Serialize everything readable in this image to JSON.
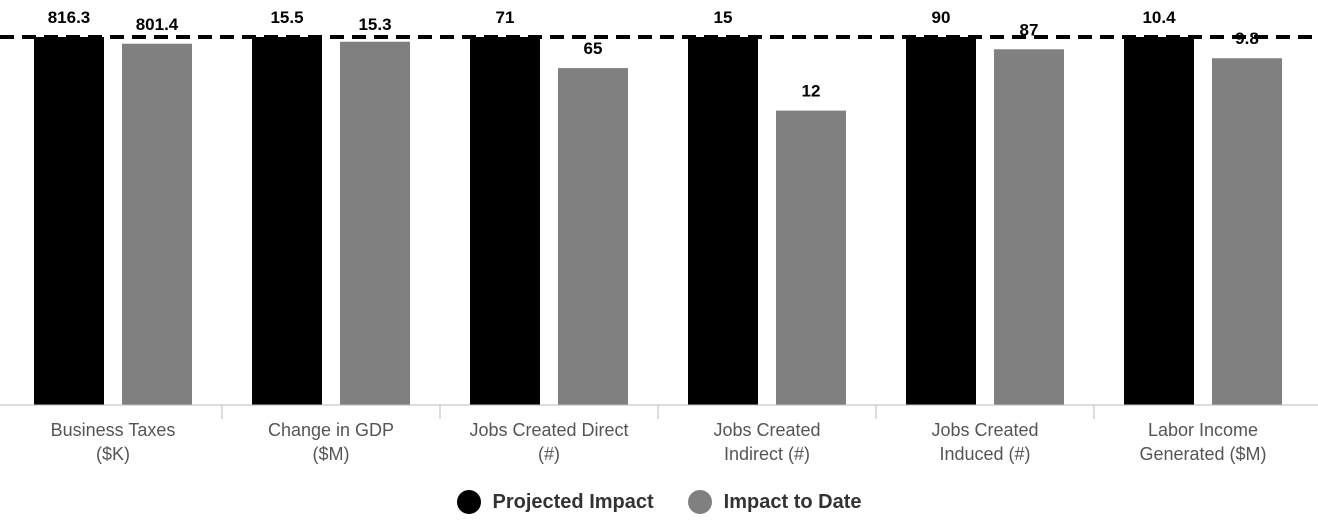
{
  "chart_data": {
    "type": "bar",
    "categories": [
      [
        "Business Taxes",
        "($K)"
      ],
      [
        "Change in GDP",
        "($M)"
      ],
      [
        "Jobs Created Direct",
        "(#)"
      ],
      [
        "Jobs Created",
        "Indirect (#)"
      ],
      [
        "Jobs Created",
        "Induced (#)"
      ],
      [
        "Labor Income",
        "Generated ($M)"
      ]
    ],
    "series": [
      {
        "name": "Projected Impact",
        "color": "#000000",
        "values": [
          816.3,
          15.5,
          71,
          15,
          90,
          10.4
        ],
        "labels": [
          "816.3",
          "15.5",
          "71",
          "15",
          "90",
          "10.4"
        ]
      },
      {
        "name": "Impact to Date",
        "color": "#808080",
        "values": [
          801.4,
          15.3,
          65,
          12,
          87,
          9.8
        ],
        "labels": [
          "801.4",
          "15.3",
          "65",
          "12",
          "87",
          "9.8"
        ]
      }
    ],
    "reference_line": {
      "style": "dashed",
      "color": "#000000",
      "value_fraction_of_projected": 1.0
    },
    "legend_position": "bottom-center",
    "grid": false
  }
}
